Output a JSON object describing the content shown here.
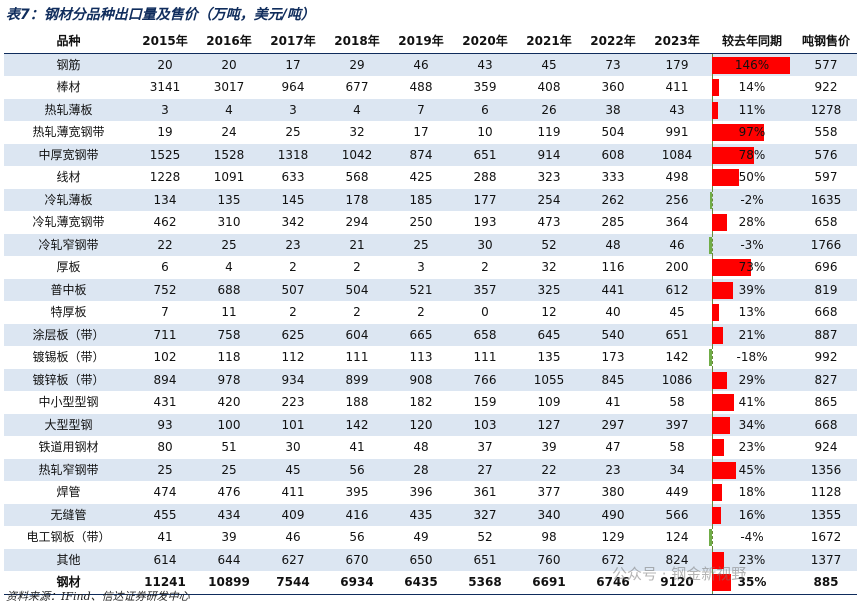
{
  "title": "表7：钢材分品种出口量及售价（万吨，美元/吨）",
  "headers": [
    "品种",
    "2015年",
    "2016年",
    "2017年",
    "2018年",
    "2019年",
    "2020年",
    "2021年",
    "2022年",
    "2023年",
    "较去年同期",
    "吨钢售价"
  ],
  "rows": [
    {
      "name": "钢筋",
      "values": [
        "20",
        "20",
        "17",
        "29",
        "46",
        "43",
        "45",
        "73",
        "179"
      ],
      "yoy": "146%",
      "yoy_value": 146,
      "price": "577"
    },
    {
      "name": "棒材",
      "values": [
        "3141",
        "3017",
        "964",
        "677",
        "488",
        "359",
        "408",
        "360",
        "411"
      ],
      "yoy": "14%",
      "yoy_value": 14,
      "price": "922"
    },
    {
      "name": "热轧薄板",
      "values": [
        "3",
        "4",
        "3",
        "4",
        "7",
        "6",
        "26",
        "38",
        "43"
      ],
      "yoy": "11%",
      "yoy_value": 11,
      "price": "1278"
    },
    {
      "name": "热轧薄宽钢带",
      "values": [
        "19",
        "24",
        "25",
        "32",
        "17",
        "10",
        "119",
        "504",
        "991"
      ],
      "yoy": "97%",
      "yoy_value": 97,
      "price": "558"
    },
    {
      "name": "中厚宽钢带",
      "values": [
        "1525",
        "1528",
        "1318",
        "1042",
        "874",
        "651",
        "914",
        "608",
        "1084"
      ],
      "yoy": "78%",
      "yoy_value": 78,
      "price": "576"
    },
    {
      "name": "线材",
      "values": [
        "1228",
        "1091",
        "633",
        "568",
        "425",
        "288",
        "323",
        "333",
        "498"
      ],
      "yoy": "50%",
      "yoy_value": 50,
      "price": "597"
    },
    {
      "name": "冷轧薄板",
      "values": [
        "134",
        "135",
        "145",
        "178",
        "185",
        "177",
        "254",
        "262",
        "256"
      ],
      "yoy": "-2%",
      "yoy_value": -2,
      "price": "1635"
    },
    {
      "name": "冷轧薄宽钢带",
      "values": [
        "462",
        "310",
        "342",
        "294",
        "250",
        "193",
        "473",
        "285",
        "364"
      ],
      "yoy": "28%",
      "yoy_value": 28,
      "price": "658"
    },
    {
      "name": "冷轧窄钢带",
      "values": [
        "22",
        "25",
        "23",
        "21",
        "25",
        "30",
        "52",
        "48",
        "46"
      ],
      "yoy": "-3%",
      "yoy_value": -3,
      "price": "1766"
    },
    {
      "name": "厚板",
      "values": [
        "6",
        "4",
        "2",
        "2",
        "3",
        "2",
        "32",
        "116",
        "200"
      ],
      "yoy": "73%",
      "yoy_value": 73,
      "price": "696"
    },
    {
      "name": "普中板",
      "values": [
        "752",
        "688",
        "507",
        "504",
        "521",
        "357",
        "325",
        "441",
        "612"
      ],
      "yoy": "39%",
      "yoy_value": 39,
      "price": "819"
    },
    {
      "name": "特厚板",
      "values": [
        "7",
        "11",
        "2",
        "2",
        "2",
        "0",
        "12",
        "40",
        "45"
      ],
      "yoy": "13%",
      "yoy_value": 13,
      "price": "668"
    },
    {
      "name": "涂层板（带）",
      "values": [
        "711",
        "758",
        "625",
        "604",
        "665",
        "658",
        "645",
        "540",
        "651"
      ],
      "yoy": "21%",
      "yoy_value": 21,
      "price": "887"
    },
    {
      "name": "镀锡板（带）",
      "values": [
        "102",
        "118",
        "112",
        "111",
        "113",
        "111",
        "135",
        "173",
        "142"
      ],
      "yoy": "-18%",
      "yoy_value": -18,
      "price": "992"
    },
    {
      "name": "镀锌板（带）",
      "values": [
        "894",
        "978",
        "934",
        "899",
        "908",
        "766",
        "1055",
        "845",
        "1086"
      ],
      "yoy": "29%",
      "yoy_value": 29,
      "price": "827"
    },
    {
      "name": "中小型型钢",
      "values": [
        "431",
        "420",
        "223",
        "188",
        "182",
        "159",
        "109",
        "41",
        "58"
      ],
      "yoy": "41%",
      "yoy_value": 41,
      "price": "865"
    },
    {
      "name": "大型型钢",
      "values": [
        "93",
        "100",
        "101",
        "142",
        "120",
        "103",
        "127",
        "297",
        "397"
      ],
      "yoy": "34%",
      "yoy_value": 34,
      "price": "668"
    },
    {
      "name": "铁道用钢材",
      "values": [
        "80",
        "51",
        "30",
        "41",
        "48",
        "37",
        "39",
        "47",
        "58"
      ],
      "yoy": "23%",
      "yoy_value": 23,
      "price": "924"
    },
    {
      "name": "热轧窄钢带",
      "values": [
        "25",
        "25",
        "45",
        "56",
        "28",
        "27",
        "22",
        "23",
        "34"
      ],
      "yoy": "45%",
      "yoy_value": 45,
      "price": "1356"
    },
    {
      "name": "焊管",
      "values": [
        "474",
        "476",
        "411",
        "395",
        "396",
        "361",
        "377",
        "380",
        "449"
      ],
      "yoy": "18%",
      "yoy_value": 18,
      "price": "1128"
    },
    {
      "name": "无缝管",
      "values": [
        "455",
        "434",
        "409",
        "416",
        "435",
        "327",
        "340",
        "490",
        "566"
      ],
      "yoy": "16%",
      "yoy_value": 16,
      "price": "1355"
    },
    {
      "name": "电工钢板（带）",
      "values": [
        "41",
        "39",
        "46",
        "56",
        "49",
        "52",
        "98",
        "129",
        "124"
      ],
      "yoy": "-4%",
      "yoy_value": -4,
      "price": "1672"
    },
    {
      "name": "其他",
      "values": [
        "614",
        "644",
        "627",
        "670",
        "650",
        "651",
        "760",
        "672",
        "824"
      ],
      "yoy": "23%",
      "yoy_value": 23,
      "price": "1377"
    }
  ],
  "total": {
    "name": "钢材",
    "values": [
      "11241",
      "10899",
      "7544",
      "6934",
      "6435",
      "5368",
      "6691",
      "6746",
      "9120"
    ],
    "yoy": "35%",
    "yoy_value": 35,
    "price": "885"
  },
  "source": "资料来源：IFind、信达证券研发中心",
  "watermark": "公众号 · 钢金新视野",
  "colors": {
    "positive_bar": "#ff0000",
    "negative_bar": "#70ad47",
    "shade_row": "#dce6f2",
    "header_rule": "#0f2c5c"
  }
}
